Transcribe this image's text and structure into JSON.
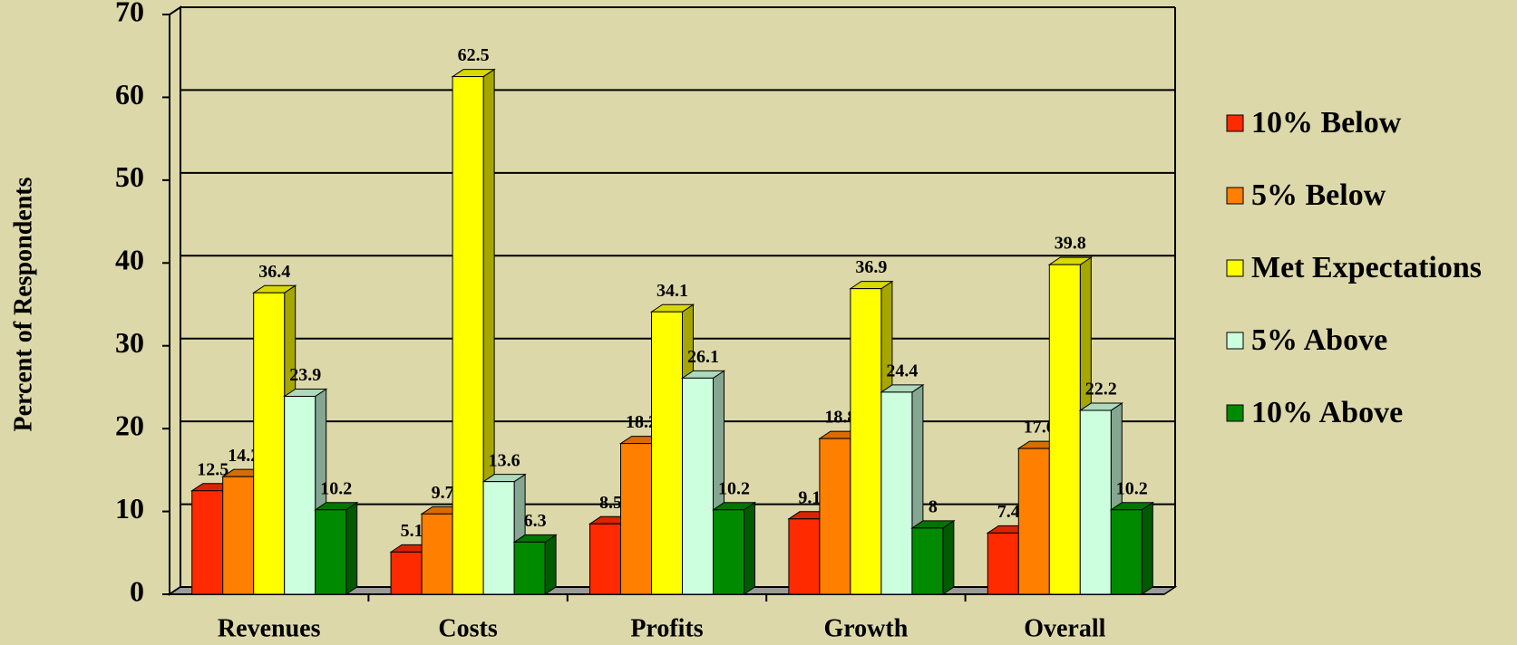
{
  "chart_data": {
    "type": "bar3d",
    "y_label": "Percent of Respondents",
    "categories": [
      "Revenues",
      "Costs",
      "Profits",
      "Growth",
      "Overall"
    ],
    "series": [
      {
        "name": "10% Below",
        "color": "#ff2a00",
        "values": [
          12.5,
          5.1,
          8.5,
          9.1,
          7.4
        ]
      },
      {
        "name": "5% Below",
        "color": "#ff7f00",
        "values": [
          14.2,
          9.7,
          18.2,
          18.8,
          17.6
        ]
      },
      {
        "name": "Met Expectations",
        "color": "#ffff00",
        "values": [
          36.4,
          62.5,
          34.1,
          36.9,
          39.8
        ]
      },
      {
        "name": "5% Above",
        "color": "#ccffdd",
        "values": [
          23.9,
          13.6,
          26.1,
          24.4,
          22.2
        ]
      },
      {
        "name": "10% Above",
        "color": "#008a00",
        "values": [
          10.2,
          6.3,
          10.2,
          8,
          10.2
        ]
      }
    ],
    "ylim": [
      0,
      70
    ],
    "yticks": [
      0,
      10,
      20,
      30,
      40,
      50,
      60,
      70
    ],
    "grid": true,
    "legend": "right"
  }
}
